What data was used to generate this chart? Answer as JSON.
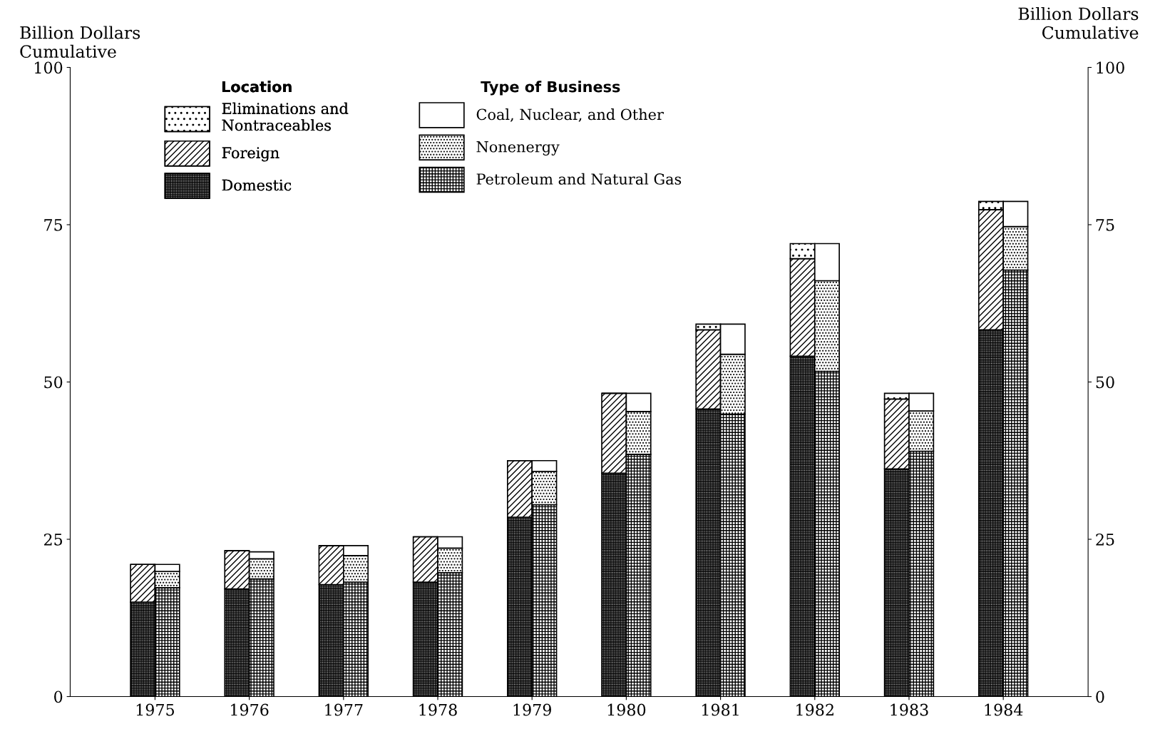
{
  "chart_data": [
    {
      "type": "bar",
      "stacked": true,
      "legend_title": "Location",
      "legend": "top left",
      "ylabel": "Billion Dollars\nCumulative",
      "categories": [
        "1975",
        "1976",
        "1977",
        "1978",
        "1979",
        "1980",
        "1981",
        "1982",
        "1983",
        "1984"
      ],
      "ylim": [
        0,
        100
      ],
      "yticks": [
        0,
        25,
        50,
        75,
        100
      ],
      "grid": false,
      "series": [
        {
          "name": "Domestic",
          "color": "#000000",
          "values": [
            15.0,
            17.1,
            17.8,
            18.2,
            28.5,
            35.5,
            45.7,
            54.1,
            36.2,
            58.3
          ]
        },
        {
          "name": "Foreign",
          "color": "#000000",
          "values": [
            6.0,
            6.1,
            6.2,
            7.2,
            9.0,
            12.7,
            12.6,
            15.5,
            11.1,
            19.1
          ]
        },
        {
          "name": "Eliminations and\nNontraceables",
          "color": "#000000",
          "values": [
            0,
            0,
            0,
            0,
            0,
            0,
            0.9,
            2.4,
            0.9,
            1.3
          ]
        }
      ]
    },
    {
      "type": "bar",
      "stacked": true,
      "tick_labels": "y",
      "legend_title": "Type of Business",
      "legend": "top left",
      "ylabel": "Billion Dollars\nCumulative",
      "categories": [
        "1975",
        "1976",
        "1977",
        "1978",
        "1979",
        "1980",
        "1981",
        "1982",
        "1983",
        "1984"
      ],
      "ylim": [
        0,
        100
      ],
      "yticks": [
        0,
        25,
        50,
        75,
        100
      ],
      "grid": false,
      "series": [
        {
          "name": "Petroleum and Natural Gas",
          "color": "#000000",
          "values": [
            17.3,
            18.7,
            18.2,
            19.7,
            30.5,
            38.5,
            44.9,
            51.7,
            39.0,
            67.8
          ]
        },
        {
          "name": "Nonenergy",
          "color": "#000000",
          "values": [
            2.6,
            3.2,
            4.2,
            3.9,
            5.3,
            6.8,
            9.5,
            14.4,
            6.4,
            6.9
          ]
        },
        {
          "name": "Coal, Nuclear, and Other",
          "color": "#000000",
          "values": [
            1.1,
            1.1,
            1.6,
            1.8,
            1.7,
            2.9,
            4.8,
            5.9,
            2.8,
            4.0
          ]
        }
      ]
    }
  ]
}
